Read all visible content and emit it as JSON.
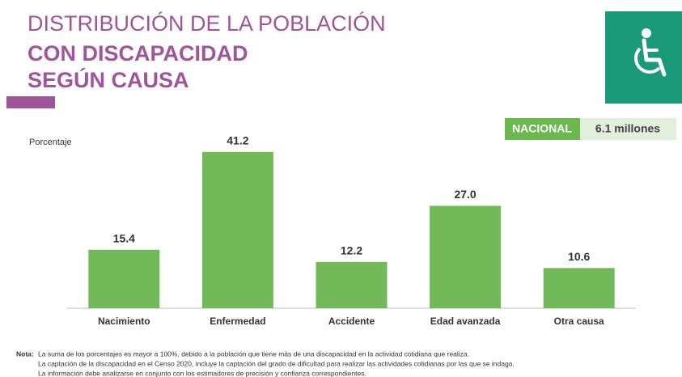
{
  "chart_data": {
    "type": "bar",
    "title_lines": [
      "DISTRIBUCIÓN DE LA POBLACIÓN",
      "CON DISCAPACIDAD",
      "SEGÚN CAUSA"
    ],
    "y_label": "Porcentaje",
    "badge": {
      "label": "NACIONAL",
      "value": "6.1 millones"
    },
    "categories": [
      "Nacimiento",
      "Enfermedad",
      "Accidente",
      "Edad avanzada",
      "Otra causa"
    ],
    "values": [
      15.4,
      41.2,
      12.2,
      27.0,
      10.6
    ],
    "value_labels": [
      "15.4",
      "41.2",
      "12.2",
      "27.0",
      "10.6"
    ],
    "color": "#72b95a",
    "ylim": [
      0,
      45
    ],
    "grid": false,
    "notes": {
      "label": "Nota:",
      "lines": [
        "La suma de los porcentajes es mayor a 100%, debido a la población que tiene más de una discapacidad en la actividad cotidiana que realiza.",
        "La captación de la discapacidad en el Censo 2020, incluye la captación del grado de dificultad para realizar las actividades cotidianas por las que se indaga.",
        "La información debe analizarse en conjunto con los estimadores de precisión y confianza correspondientes."
      ]
    }
  }
}
